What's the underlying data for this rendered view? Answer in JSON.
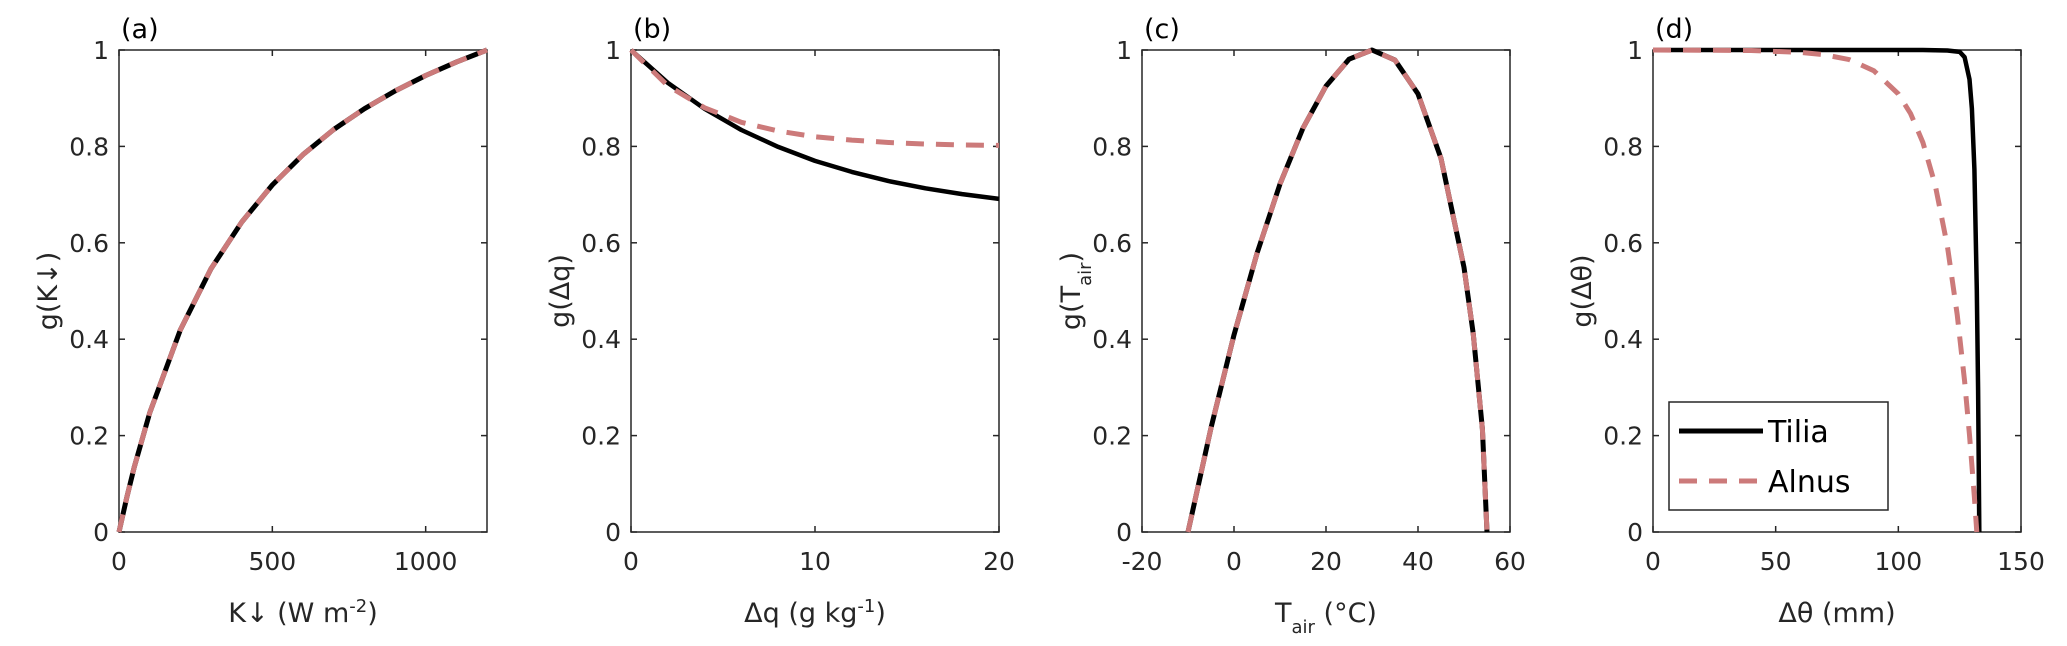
{
  "colors": {
    "tilia": "#000000",
    "alnus": "#cc7a7a",
    "axis": "#262626"
  },
  "legend": {
    "placement": "lower-left of panel (d)",
    "entries": [
      "Tilia",
      "Alnus"
    ]
  },
  "chart_data": [
    {
      "type": "line",
      "panel_label": "(a)",
      "xlabel": [
        {
          "t": "K↓ (W m"
        },
        {
          "t": "-2",
          "s": "sup"
        },
        {
          "t": ")"
        }
      ],
      "ylabel": [
        {
          "t": "g(K↓)"
        }
      ],
      "xlim": [
        0,
        1200
      ],
      "ylim": [
        0,
        1
      ],
      "xticks": [
        0,
        500,
        1000
      ],
      "xticklabels": [
        "0",
        "500",
        "1000"
      ],
      "yticks": [
        0,
        0.2,
        0.4,
        0.6,
        0.8,
        1
      ],
      "yticklabels": [
        "0",
        "0.2",
        "0.4",
        "0.6",
        "0.8",
        "1"
      ],
      "series": [
        {
          "name": "Tilia",
          "x": [
            0,
            25,
            50,
            100,
            200,
            300,
            400,
            500,
            600,
            700,
            800,
            900,
            1000,
            1100,
            1200
          ],
          "y": [
            0,
            0.071,
            0.135,
            0.247,
            0.419,
            0.546,
            0.643,
            0.72,
            0.783,
            0.835,
            0.878,
            0.915,
            0.947,
            0.975,
            1
          ]
        },
        {
          "name": "Alnus",
          "x": [
            0,
            25,
            50,
            100,
            200,
            300,
            400,
            500,
            600,
            700,
            800,
            900,
            1000,
            1100,
            1200
          ],
          "y": [
            0,
            0.071,
            0.135,
            0.247,
            0.419,
            0.546,
            0.643,
            0.72,
            0.783,
            0.835,
            0.878,
            0.915,
            0.947,
            0.975,
            1
          ]
        }
      ]
    },
    {
      "type": "line",
      "panel_label": "(b)",
      "xlabel": [
        {
          "t": "Δq (g kg"
        },
        {
          "t": "-1",
          "s": "sup"
        },
        {
          "t": ")"
        }
      ],
      "ylabel": [
        {
          "t": "g(Δq)"
        }
      ],
      "xlim": [
        0,
        20
      ],
      "ylim": [
        0,
        1
      ],
      "xticks": [
        0,
        10,
        20
      ],
      "xticklabels": [
        "0",
        "10",
        "20"
      ],
      "yticks": [
        0,
        0.2,
        0.4,
        0.6,
        0.8,
        1
      ],
      "yticklabels": [
        "0",
        "0.2",
        "0.4",
        "0.6",
        "0.8",
        "1"
      ],
      "series": [
        {
          "name": "Tilia",
          "x": [
            0,
            2,
            4,
            6,
            8,
            10,
            12,
            14,
            16,
            18,
            20
          ],
          "y": [
            1,
            0.932,
            0.878,
            0.834,
            0.799,
            0.77,
            0.747,
            0.728,
            0.713,
            0.701,
            0.691
          ]
        },
        {
          "name": "Alnus",
          "x": [
            0,
            2,
            4,
            6,
            8,
            10,
            12,
            14,
            16,
            18,
            20
          ],
          "y": [
            1,
            0.926,
            0.88,
            0.85,
            0.832,
            0.82,
            0.813,
            0.808,
            0.805,
            0.803,
            0.802
          ]
        }
      ]
    },
    {
      "type": "line",
      "panel_label": "(c)",
      "xlabel": [
        {
          "t": "T"
        },
        {
          "t": "air",
          "s": "sub"
        },
        {
          "t": " (°C)"
        }
      ],
      "ylabel": [
        {
          "t": "g(T"
        },
        {
          "t": "air",
          "s": "sub"
        },
        {
          "t": ")"
        }
      ],
      "xlim": [
        -20,
        60
      ],
      "ylim": [
        0,
        1
      ],
      "xticks": [
        -20,
        0,
        20,
        40,
        60
      ],
      "xticklabels": [
        "-20",
        "0",
        "20",
        "40",
        "60"
      ],
      "yticks": [
        0,
        0.2,
        0.4,
        0.6,
        0.8,
        1
      ],
      "yticklabels": [
        "0",
        "0.2",
        "0.4",
        "0.6",
        "0.8",
        "1"
      ],
      "series": [
        {
          "name": "Tilia",
          "x": [
            -10,
            -5,
            0,
            5,
            10,
            15,
            20,
            25,
            30,
            35,
            40,
            45,
            50,
            52,
            54,
            55
          ],
          "y": [
            0,
            0.216,
            0.409,
            0.578,
            0.722,
            0.838,
            0.925,
            0.981,
            1,
            0.979,
            0.909,
            0.775,
            0.549,
            0.412,
            0.214,
            0
          ]
        },
        {
          "name": "Alnus",
          "x": [
            -10,
            -5,
            0,
            5,
            10,
            15,
            20,
            25,
            30,
            35,
            40,
            45,
            50,
            52,
            54,
            55
          ],
          "y": [
            0,
            0.216,
            0.409,
            0.578,
            0.722,
            0.838,
            0.925,
            0.981,
            1,
            0.979,
            0.909,
            0.775,
            0.549,
            0.412,
            0.214,
            0
          ]
        }
      ]
    },
    {
      "type": "line",
      "panel_label": "(d)",
      "xlabel": [
        {
          "t": "Δθ (mm)"
        }
      ],
      "ylabel": [
        {
          "t": "g(Δθ)"
        }
      ],
      "xlim": [
        0,
        150
      ],
      "ylim": [
        0,
        1
      ],
      "xticks": [
        0,
        50,
        100,
        150
      ],
      "xticklabels": [
        "0",
        "50",
        "100",
        "150"
      ],
      "yticks": [
        0,
        0.2,
        0.4,
        0.6,
        0.8,
        1
      ],
      "yticklabels": [
        "0",
        "0.2",
        "0.4",
        "0.6",
        "0.8",
        "1"
      ],
      "series": [
        {
          "name": "Tilia",
          "x": [
            0,
            50,
            100,
            110,
            120,
            125,
            127,
            129,
            130,
            131,
            132,
            132.5,
            133
          ],
          "y": [
            1,
            1,
            1,
            1,
            0.999,
            0.996,
            0.985,
            0.939,
            0.878,
            0.753,
            0.503,
            0.295,
            0
          ]
        },
        {
          "name": "Alnus",
          "x": [
            0,
            40,
            60,
            70,
            80,
            90,
            100,
            105,
            110,
            115,
            120,
            124,
            127,
            129,
            131,
            132
          ],
          "y": [
            1,
            0.999,
            0.995,
            0.99,
            0.98,
            0.957,
            0.909,
            0.868,
            0.808,
            0.721,
            0.593,
            0.451,
            0.313,
            0.201,
            0.072,
            0
          ]
        }
      ]
    }
  ]
}
